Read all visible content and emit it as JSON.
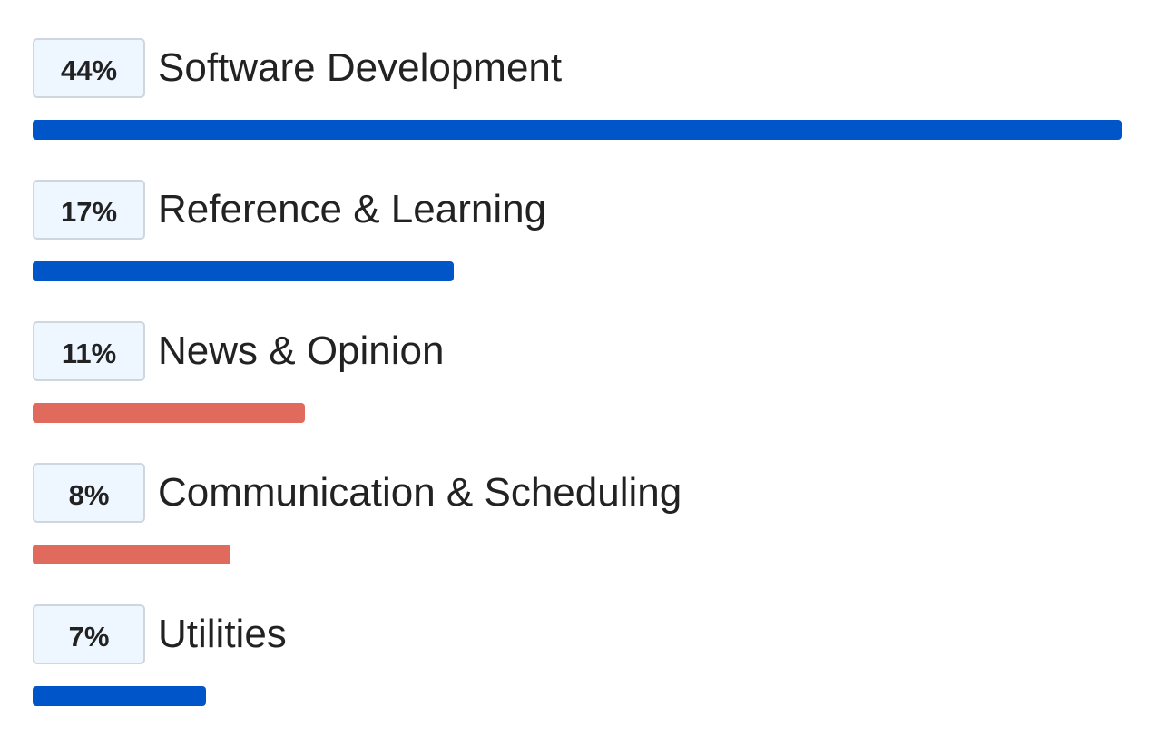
{
  "chart_data": {
    "type": "bar",
    "orientation": "horizontal",
    "grid": false,
    "categories": [
      "Software Development",
      "Reference & Learning",
      "News & Opinion",
      "Communication & Scheduling",
      "Utilities"
    ],
    "values": [
      44,
      17,
      11,
      8,
      7
    ],
    "value_labels": [
      "44%",
      "17%",
      "11%",
      "8%",
      "7%"
    ],
    "bar_colors": [
      "#0055c8",
      "#0055c8",
      "#e06a5c",
      "#e06a5c",
      "#0055c8"
    ],
    "xlim": [
      0,
      44
    ]
  },
  "colors": {
    "productive": "#0055c8",
    "distracting": "#e06a5c",
    "badge_background": "#eef6ff",
    "badge_border": "#cfd6de",
    "text": "#222222"
  }
}
